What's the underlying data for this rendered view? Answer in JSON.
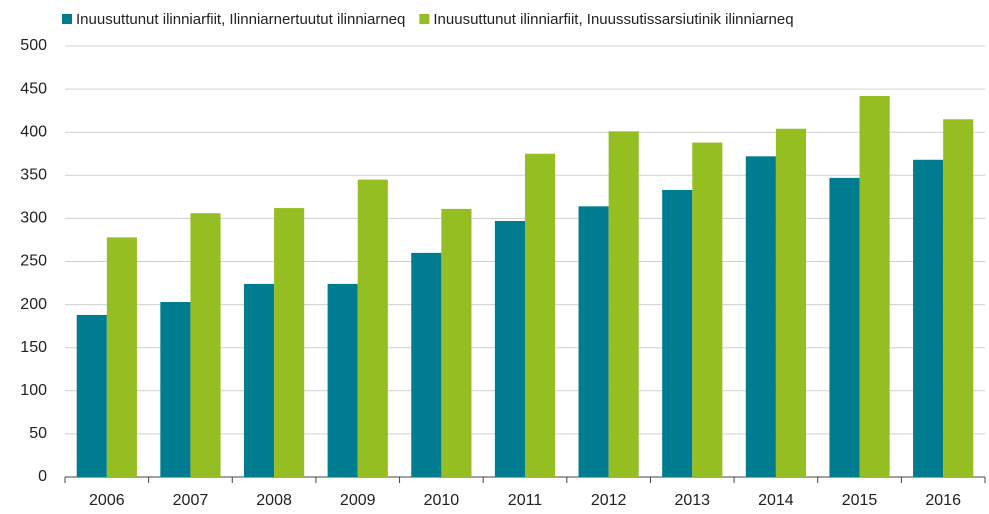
{
  "chart_data": {
    "type": "bar",
    "categories": [
      "2006",
      "2007",
      "2008",
      "2009",
      "2010",
      "2011",
      "2012",
      "2013",
      "2014",
      "2015",
      "2016"
    ],
    "series": [
      {
        "name": "Inuusuttunut ilinniarfiit, Ilinniarnertuutut ilinniarneq",
        "color": "#007c91",
        "values": [
          188,
          203,
          224,
          224,
          260,
          297,
          314,
          333,
          372,
          347,
          368
        ]
      },
      {
        "name": "Inuusuttunut ilinniarfiit, Inuussutissarsiutinik ilinniarneq",
        "color": "#95be23",
        "values": [
          278,
          306,
          312,
          345,
          311,
          375,
          401,
          388,
          404,
          442,
          415
        ]
      }
    ],
    "ylim": [
      0,
      500
    ],
    "yticks": [
      0,
      50,
      100,
      150,
      200,
      250,
      300,
      350,
      400,
      450,
      500
    ],
    "grid": true,
    "legend": "top"
  }
}
